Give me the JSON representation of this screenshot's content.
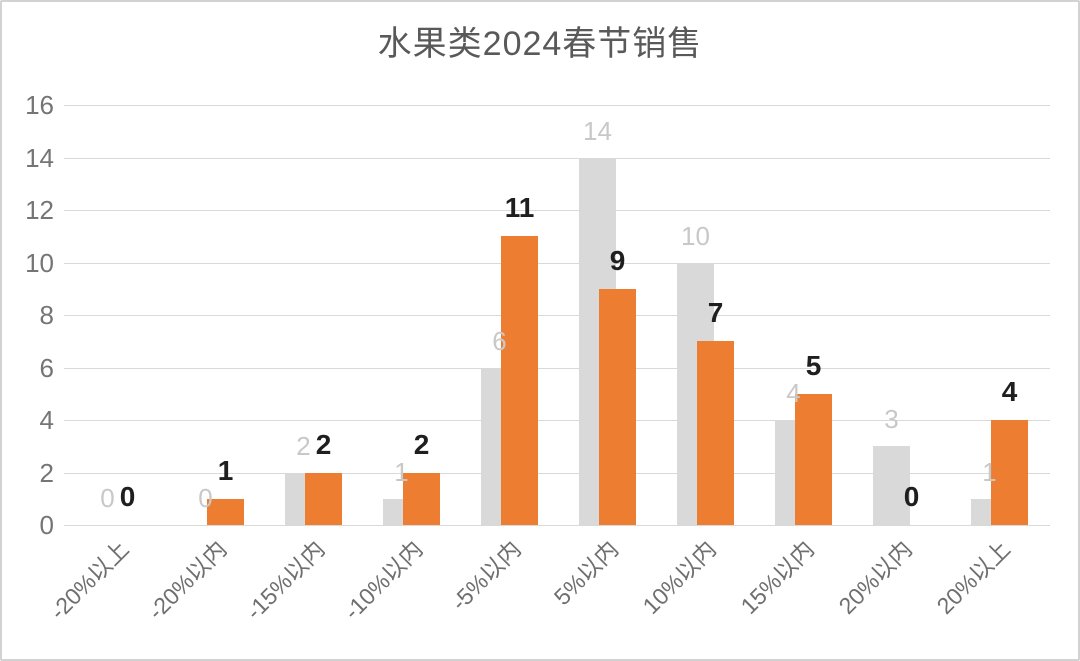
{
  "chart_data": {
    "type": "bar",
    "title": "水果类2024春节销售",
    "categories": [
      "-20%以上",
      "-20%以内",
      "-15%以内",
      "-10%以内",
      "-5%以内",
      "5%以内",
      "10%以内",
      "15%以内",
      "20%以内",
      "20%以上"
    ],
    "series": [
      {
        "name": "gray-series",
        "color": "#d9d9d9",
        "label_color": "#c8c8c8",
        "values": [
          0,
          0,
          2,
          1,
          6,
          14,
          10,
          4,
          3,
          1
        ]
      },
      {
        "name": "orange-series",
        "color": "#ed7d31",
        "label_color": "#1f1f1f",
        "values": [
          0,
          1,
          2,
          2,
          11,
          9,
          7,
          5,
          0,
          4
        ]
      }
    ],
    "y_ticks": [
      0,
      2,
      4,
      6,
      8,
      10,
      12,
      14,
      16
    ],
    "ylim": [
      0,
      16
    ],
    "xlabel": "",
    "ylabel": "",
    "grid": true,
    "legend": "none",
    "data_labels": "outside-end"
  }
}
